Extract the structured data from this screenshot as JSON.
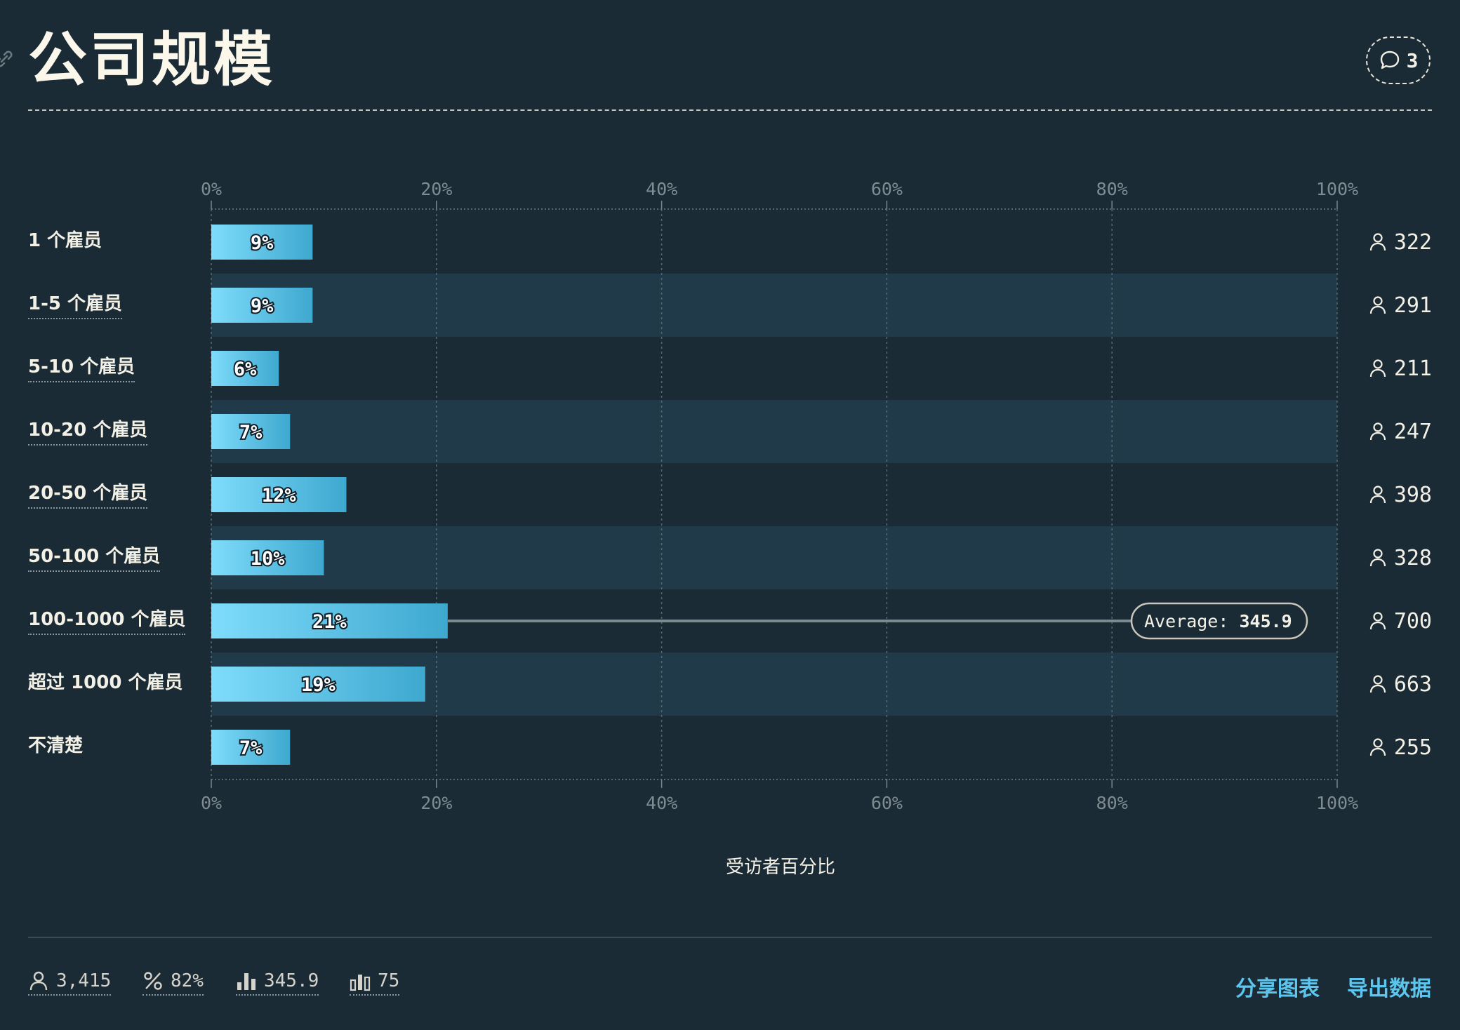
{
  "title": "公司规模",
  "comment_count": "3",
  "colors": {
    "background": "#1a2b36",
    "band": "#203a4a",
    "bar_start": "#7fdcfb",
    "bar_end": "#3ea8cf",
    "accent": "#5cc6ee",
    "average_line": "#7c8a90"
  },
  "chart_data": {
    "type": "bar",
    "orientation": "horizontal",
    "categories": [
      "1 个雇员",
      "1-5 个雇员",
      "5-10 个雇员",
      "10-20 个雇员",
      "20-50 个雇员",
      "50-100 个雇员",
      "100-1000 个雇员",
      "超过 1000 个雇员",
      "不清楚"
    ],
    "values": [
      9,
      9,
      6,
      7,
      12,
      10,
      21,
      19,
      7
    ],
    "value_labels": [
      "9%",
      "9%",
      "6%",
      "7%",
      "12%",
      "10%",
      "21%",
      "19%",
      "7%"
    ],
    "counts": [
      "322",
      "291",
      "211",
      "247",
      "398",
      "328",
      "700",
      "663",
      "255"
    ],
    "xlabel": "受访者百分比",
    "xlim": [
      0,
      100
    ],
    "x_ticks": [
      "0%",
      "20%",
      "40%",
      "60%",
      "80%",
      "100%"
    ],
    "grid": true,
    "average": {
      "label": "Average:",
      "value": "345.9",
      "category": "100-1000 个雇员"
    }
  },
  "footer": {
    "respondents": "3,415",
    "percent": "82%",
    "average": "345.9",
    "count": "75",
    "share_label": "分享图表",
    "export_label": "导出数据"
  }
}
